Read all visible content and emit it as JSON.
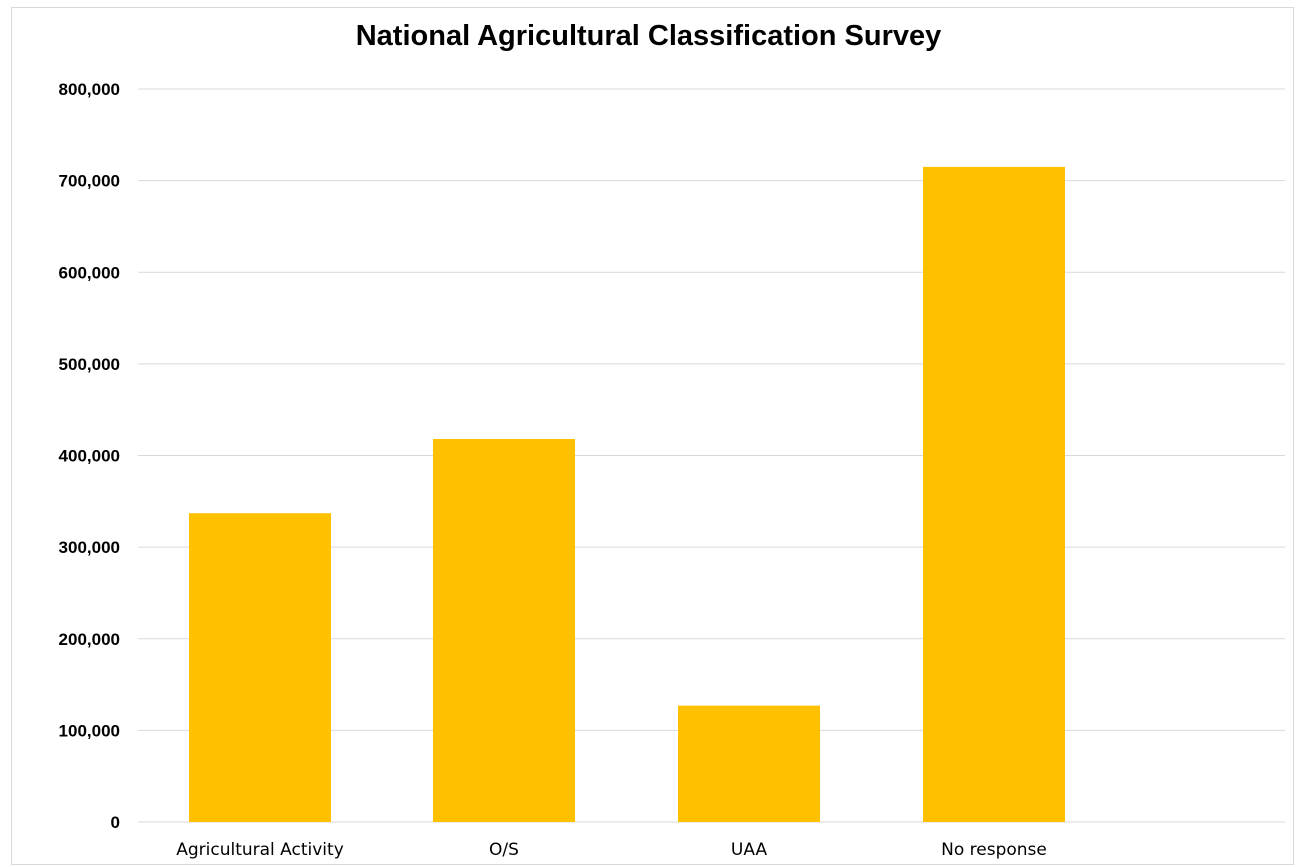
{
  "chart_data": {
    "type": "bar",
    "title": "National Agricultural Classification Survey",
    "xlabel": "",
    "ylabel": "",
    "categories": [
      "Agricultural Activity",
      "O/S",
      "UAA",
      "No response"
    ],
    "values": [
      337000,
      418000,
      127000,
      715000
    ],
    "ylim": [
      0,
      800000
    ],
    "yticks": [
      0,
      100000,
      200000,
      300000,
      400000,
      500000,
      600000,
      700000,
      800000
    ],
    "ytick_labels": [
      "0",
      "100,000",
      "200,000",
      "300,000",
      "400,000",
      "500,000",
      "600,000",
      "700,000",
      "800,000"
    ],
    "grid": true,
    "legend": "none",
    "bar_color": "#ffc000",
    "grid_color": "#d9d9d9"
  }
}
